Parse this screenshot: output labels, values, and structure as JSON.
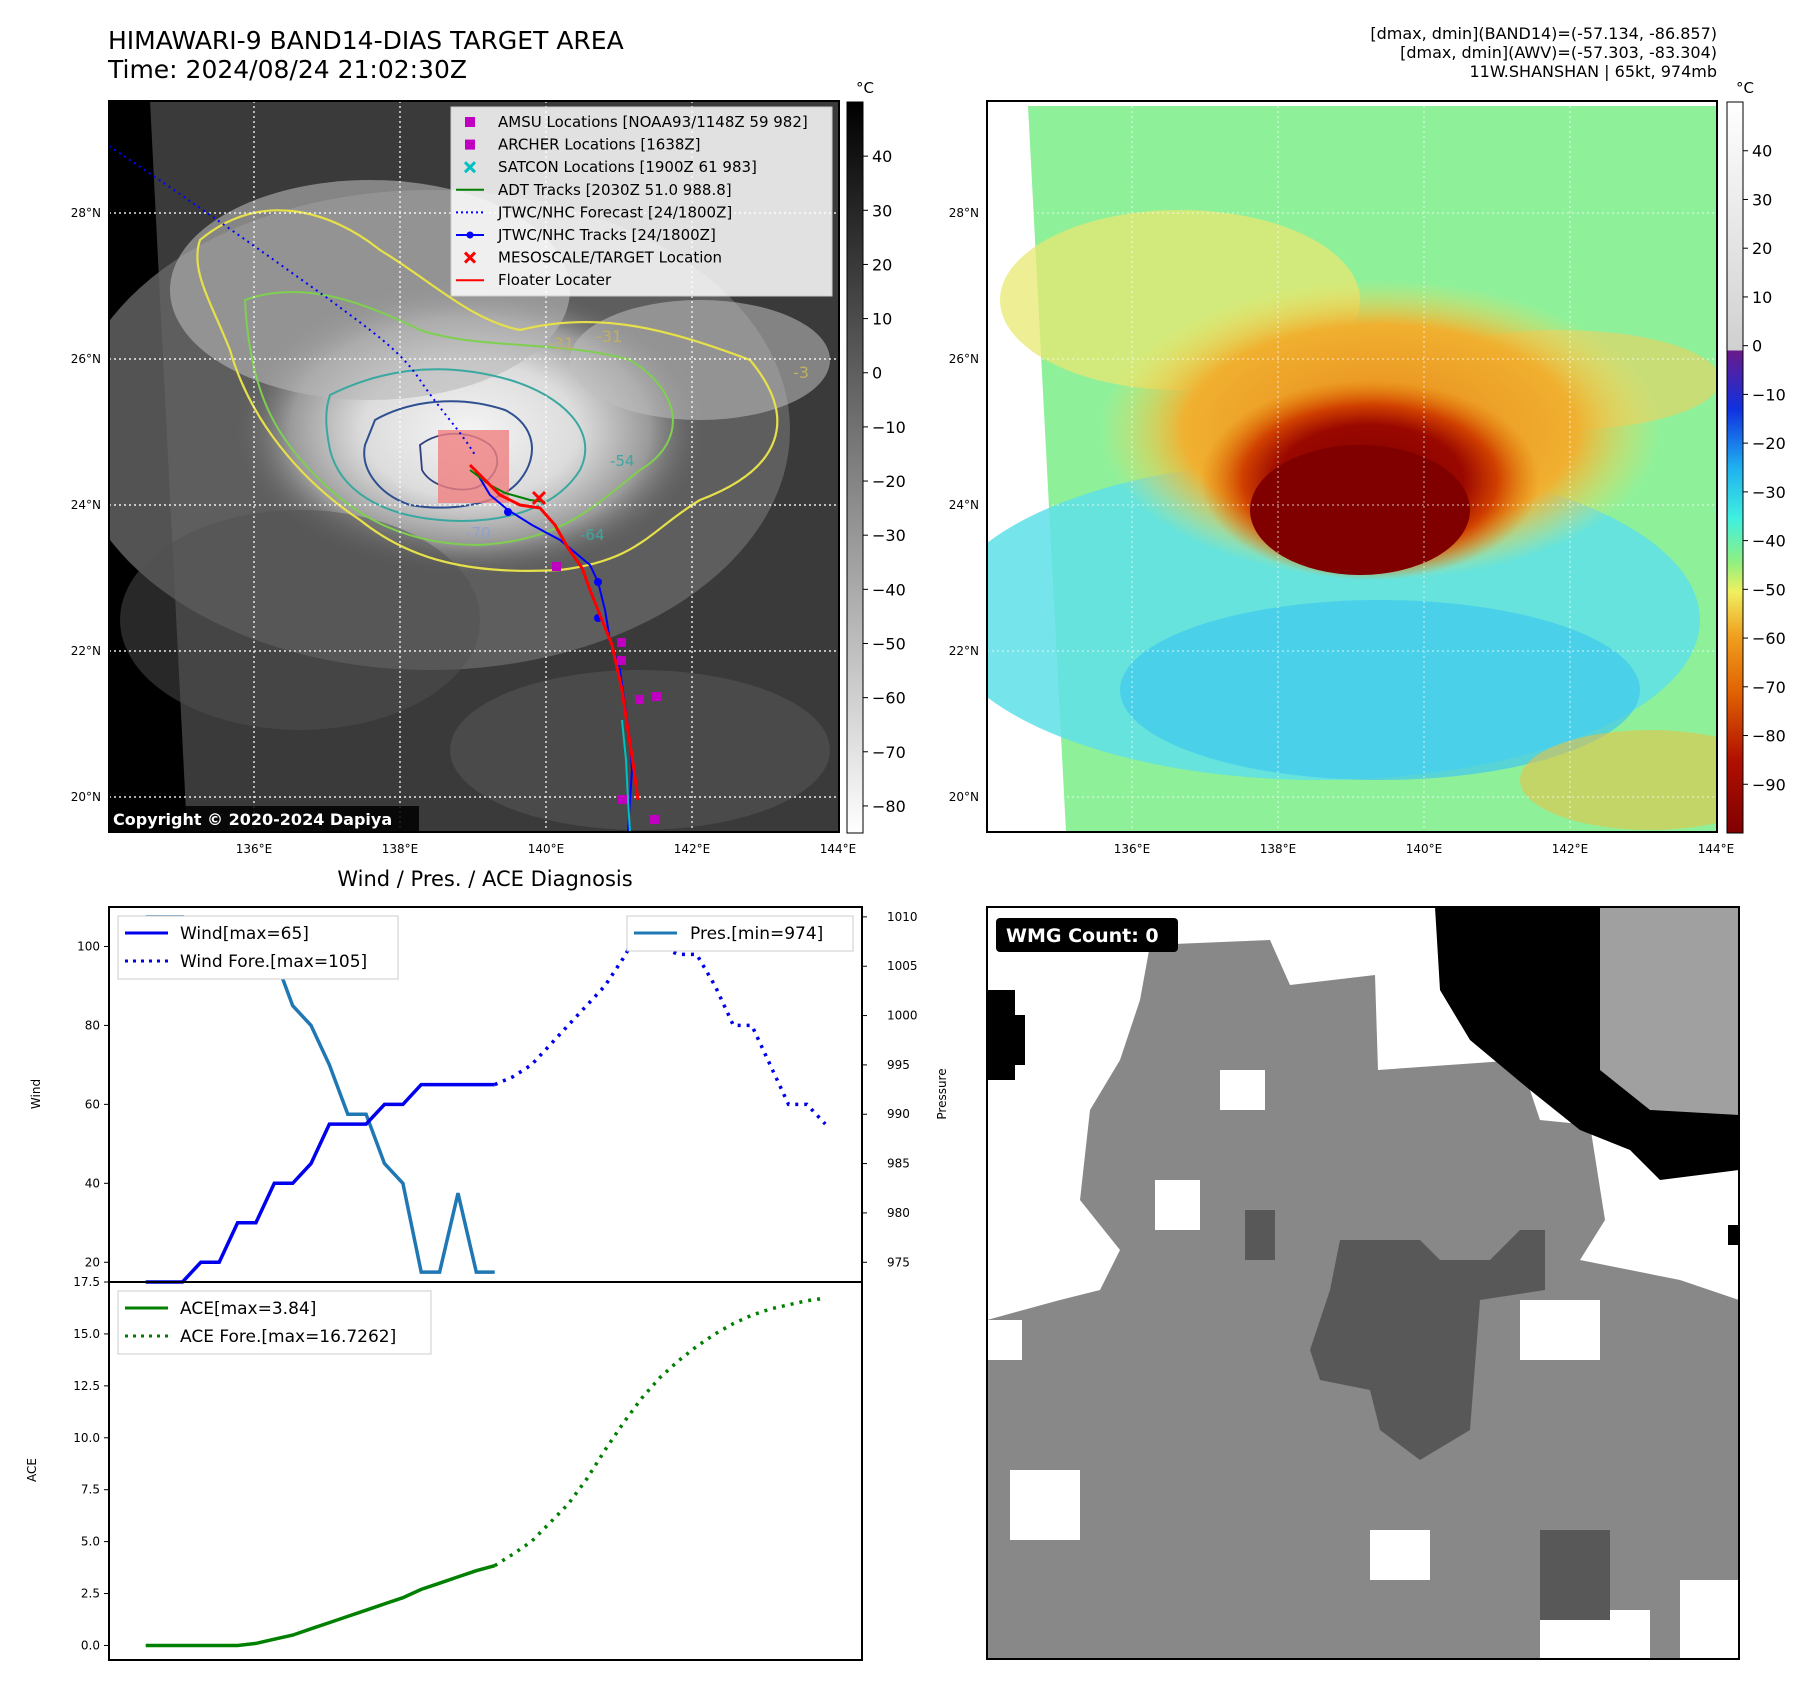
{
  "header": {
    "title_line1": "HIMAWARI-9 BAND14-DIAS TARGET AREA",
    "title_line2": "Time: 2024/08/24 21:02:30Z",
    "info_line1": "[dmax, dmin](BAND14)=(-57.134, -86.857)",
    "info_line2": "[dmax, dmin](AWV)=(-57.303, -83.304)",
    "info_line3": "11W.SHANSHAN | 65kt, 974mb"
  },
  "ir_map": {
    "lon_ticks": [
      "136°E",
      "138°E",
      "140°E",
      "142°E",
      "144°E"
    ],
    "lat_ticks": [
      "28°N",
      "26°N",
      "24°N",
      "22°N",
      "20°N"
    ],
    "lon_range": [
      134.0,
      144.0
    ],
    "lat_range": [
      19.5,
      29.5
    ],
    "copyright": "Copyright © 2020-2024 Dapiya",
    "contour_labels": [
      "-31",
      "-31",
      "-3",
      "-54",
      "-70",
      "-64"
    ],
    "legend": [
      {
        "label": "AMSU Locations [NOAA93/1148Z 59 982]",
        "marker": "square",
        "color": "#c000c0"
      },
      {
        "label": "ARCHER Locations [1638Z]",
        "marker": "square",
        "color": "#c000c0"
      },
      {
        "label": "SATCON Locations [1900Z 61 983]",
        "marker": "x",
        "color": "#00c0c0"
      },
      {
        "label": "ADT Tracks [2030Z 51.0 988.8]",
        "marker": "line",
        "color": "#008000"
      },
      {
        "label": "JTWC/NHC Forecast [24/1800Z]",
        "marker": "dotted",
        "color": "#0000ff"
      },
      {
        "label": "JTWC/NHC Tracks [24/1800Z]",
        "marker": "line-dot",
        "color": "#0000ff"
      },
      {
        "label": "MESOSCALE/TARGET Location",
        "marker": "x",
        "color": "#ff0000"
      },
      {
        "label": "Floater Locater",
        "marker": "line",
        "color": "#ff0000"
      }
    ],
    "colorbar_unit": "°C",
    "colorbar_ticks": [
      "40",
      "30",
      "20",
      "10",
      "0",
      "−10",
      "−20",
      "−30",
      "−40",
      "−50",
      "−60",
      "−70",
      "−80"
    ],
    "colorbar_range": [
      -85,
      50
    ]
  },
  "awv_map": {
    "lon_ticks": [
      "136°E",
      "138°E",
      "140°E",
      "142°E",
      "144°E"
    ],
    "lat_ticks": [
      "28°N",
      "26°N",
      "24°N",
      "22°N",
      "20°N"
    ],
    "colorbar_unit": "°C",
    "colorbar_ticks": [
      "40",
      "30",
      "20",
      "10",
      "0",
      "−10",
      "−20",
      "−30",
      "−40",
      "−50",
      "−60",
      "−70",
      "−80",
      "−90"
    ],
    "colorbar_range": [
      -100,
      50
    ]
  },
  "diagnosis": {
    "title": "Wind / Pres. / ACE Diagnosis",
    "wind_axis_label": "Wind",
    "pressure_axis_label": "Pressure",
    "ace_axis_label": "ACE",
    "wind_ticks": [
      "100",
      "80",
      "60",
      "40",
      "20"
    ],
    "pressure_ticks": [
      "1010",
      "1005",
      "1000",
      "995",
      "990",
      "985",
      "980",
      "975"
    ],
    "ace_ticks": [
      "17.5",
      "15.0",
      "12.5",
      "10.0",
      "7.5",
      "5.0",
      "2.5",
      "0.0"
    ],
    "legend_wind": "Wind[max=65]",
    "legend_wind_fore": "Wind Fore.[max=105]",
    "legend_pres": "Pres.[min=974]",
    "legend_ace": "ACE[max=3.84]",
    "legend_ace_fore": "ACE Fore.[max=16.7262]"
  },
  "chart_data": [
    {
      "type": "line",
      "title": "Wind / Pres. / ACE Diagnosis",
      "ylabel": "Wind",
      "ylim": [
        15,
        110
      ],
      "x": [
        0,
        1,
        2,
        3,
        4,
        5,
        6,
        7,
        8,
        9,
        10,
        11,
        12,
        13,
        14,
        15,
        16,
        17,
        18,
        19
      ],
      "series": [
        {
          "name": "Wind[max=65]",
          "color": "#0000ee",
          "style": "solid",
          "values": [
            15,
            15,
            15,
            20,
            20,
            30,
            30,
            40,
            40,
            45,
            55,
            55,
            55,
            60,
            60,
            65,
            65,
            65,
            65,
            65
          ]
        }
      ]
    },
    {
      "type": "line",
      "ylabel": "Wind",
      "ylim": [
        15,
        110
      ],
      "x": [
        19,
        20,
        21,
        22,
        23,
        24,
        25,
        26,
        27,
        28,
        29,
        30,
        31,
        32,
        33,
        34,
        35,
        36,
        37
      ],
      "series": [
        {
          "name": "Wind Fore.[max=105]",
          "color": "#0000ee",
          "style": "dotted",
          "values": [
            65,
            67,
            70,
            75,
            80,
            85,
            90,
            97,
            105,
            100,
            98,
            98,
            90,
            80,
            80,
            70,
            60,
            60,
            55
          ]
        }
      ]
    },
    {
      "type": "line",
      "ylabel": "Pressure",
      "ylim": [
        973,
        1011
      ],
      "x": [
        0,
        1,
        2,
        3,
        4,
        5,
        6,
        7,
        8,
        9,
        10,
        11,
        12,
        13,
        14,
        15,
        16,
        17,
        18,
        19
      ],
      "series": [
        {
          "name": "Pres.[min=974]",
          "color": "#1f77b4",
          "style": "solid",
          "values": [
            1010,
            1010,
            1010,
            1004,
            1004,
            1006,
            1006,
            1006,
            1001,
            999,
            995,
            990,
            990,
            985,
            983,
            974,
            974,
            982,
            974,
            974
          ]
        }
      ]
    },
    {
      "type": "line",
      "ylabel": "ACE",
      "ylim": [
        -0.7,
        17.5
      ],
      "x": [
        0,
        1,
        2,
        3,
        4,
        5,
        6,
        7,
        8,
        9,
        10,
        11,
        12,
        13,
        14,
        15,
        16,
        17,
        18,
        19
      ],
      "series": [
        {
          "name": "ACE[max=3.84]",
          "color": "#008000",
          "style": "solid",
          "values": [
            0,
            0,
            0,
            0,
            0,
            0,
            0.1,
            0.3,
            0.5,
            0.8,
            1.1,
            1.4,
            1.7,
            2.0,
            2.3,
            2.7,
            3.0,
            3.3,
            3.6,
            3.84
          ]
        }
      ]
    },
    {
      "type": "line",
      "ylabel": "ACE",
      "ylim": [
        -0.7,
        17.5
      ],
      "x": [
        19,
        20,
        21,
        22,
        23,
        24,
        25,
        26,
        27,
        28,
        29,
        30,
        31,
        32,
        33,
        34,
        35,
        36,
        37
      ],
      "series": [
        {
          "name": "ACE Fore.[max=16.7262]",
          "color": "#008000",
          "style": "dotted",
          "values": [
            3.84,
            4.4,
            5.0,
            5.9,
            6.8,
            8.0,
            9.4,
            10.7,
            11.9,
            12.9,
            13.7,
            14.4,
            15.0,
            15.5,
            15.9,
            16.2,
            16.4,
            16.6,
            16.7262
          ]
        }
      ]
    }
  ],
  "wmg": {
    "label": "WMG Count: 0"
  }
}
